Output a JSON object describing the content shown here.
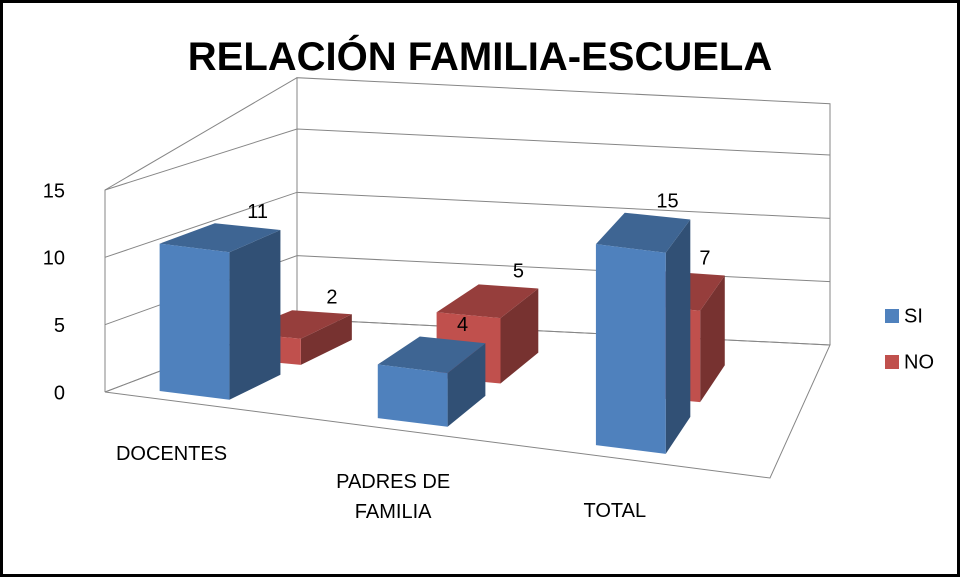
{
  "chart_data": {
    "type": "bar3d",
    "title": "RELACIÓN FAMILIA-ESCUELA",
    "categories": [
      "DOCENTES",
      "PADRES DE FAMILIA",
      "TOTAL"
    ],
    "series": [
      {
        "name": "SI",
        "color": "#4f81bd",
        "values": [
          11,
          4,
          15
        ]
      },
      {
        "name": "NO",
        "color": "#c0504d",
        "values": [
          2,
          5,
          7
        ]
      }
    ],
    "ylim": [
      0,
      15
    ],
    "yticks": [
      0,
      5,
      10,
      15
    ],
    "grid": true,
    "legend": "right"
  }
}
